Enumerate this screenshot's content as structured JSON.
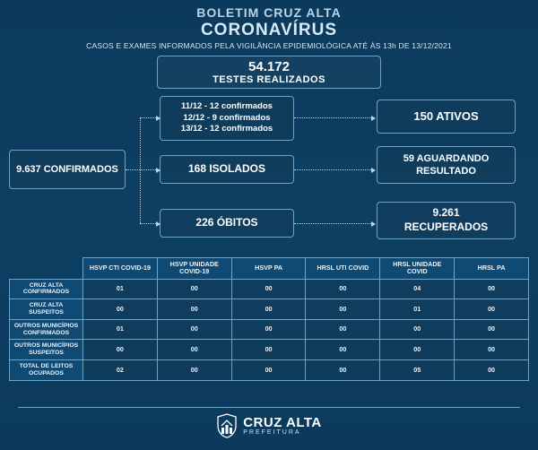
{
  "header": {
    "boletim": "BOLETIM CRUZ ALTA",
    "corona": "CORONAVÍRUS",
    "subtitle": "CASOS E EXAMES INFORMADOS PELA VIGILÂNCIA EPIDEMIOLÓGICA ATÉ ÀS 13h DE 13/12/2021"
  },
  "tests": {
    "number": "54.172",
    "label": "TESTES REALIZADOS"
  },
  "flow": {
    "confirmed": "9.637 CONFIRMADOS",
    "recent_line1": "11/12 - 12 confirmados",
    "recent_line2": "12/12 - 9 confirmados",
    "recent_line3": "13/12 - 12 confirmados",
    "ativos": "150 ATIVOS",
    "isolados": "168 ISOLADOS",
    "aguardando_line1": "59 AGUARDANDO",
    "aguardando_line2": "RESULTADO",
    "obitos": "226 ÓBITOS",
    "recuperados_line1": "9.261",
    "recuperados_line2": "RECUPERADOS"
  },
  "table": {
    "columns": [
      "HSVP CTI COVID-19",
      "HSVP UNIDADE COVID-19",
      "HSVP PA",
      "HRSL UTI COVID",
      "HRSL UNIDADE COVID",
      "HRSL PA"
    ],
    "rows": [
      {
        "label": "CRUZ ALTA CONFIRMADOS",
        "cells": [
          "01",
          "00",
          "00",
          "00",
          "04",
          "00"
        ]
      },
      {
        "label": "CRUZ ALTA SUSPEITOS",
        "cells": [
          "00",
          "00",
          "00",
          "00",
          "01",
          "00"
        ]
      },
      {
        "label": "OUTROS MUNICÍPIOS CONFIRMADOS",
        "cells": [
          "01",
          "00",
          "00",
          "00",
          "00",
          "00"
        ]
      },
      {
        "label": "OUTROS MUNICÍPIOS SUSPEITOS",
        "cells": [
          "00",
          "00",
          "00",
          "00",
          "00",
          "00"
        ]
      },
      {
        "label": "TOTAL DE LEITOS OCUPADOS",
        "cells": [
          "02",
          "00",
          "00",
          "00",
          "05",
          "00"
        ]
      }
    ]
  },
  "footer": {
    "city": "CRUZ ALTA",
    "prefeitura": "PREFEITURA"
  },
  "colors": {
    "bg_top": "#0b3a5c",
    "border": "#6fa3c4",
    "text_light": "#d6eaf7"
  }
}
